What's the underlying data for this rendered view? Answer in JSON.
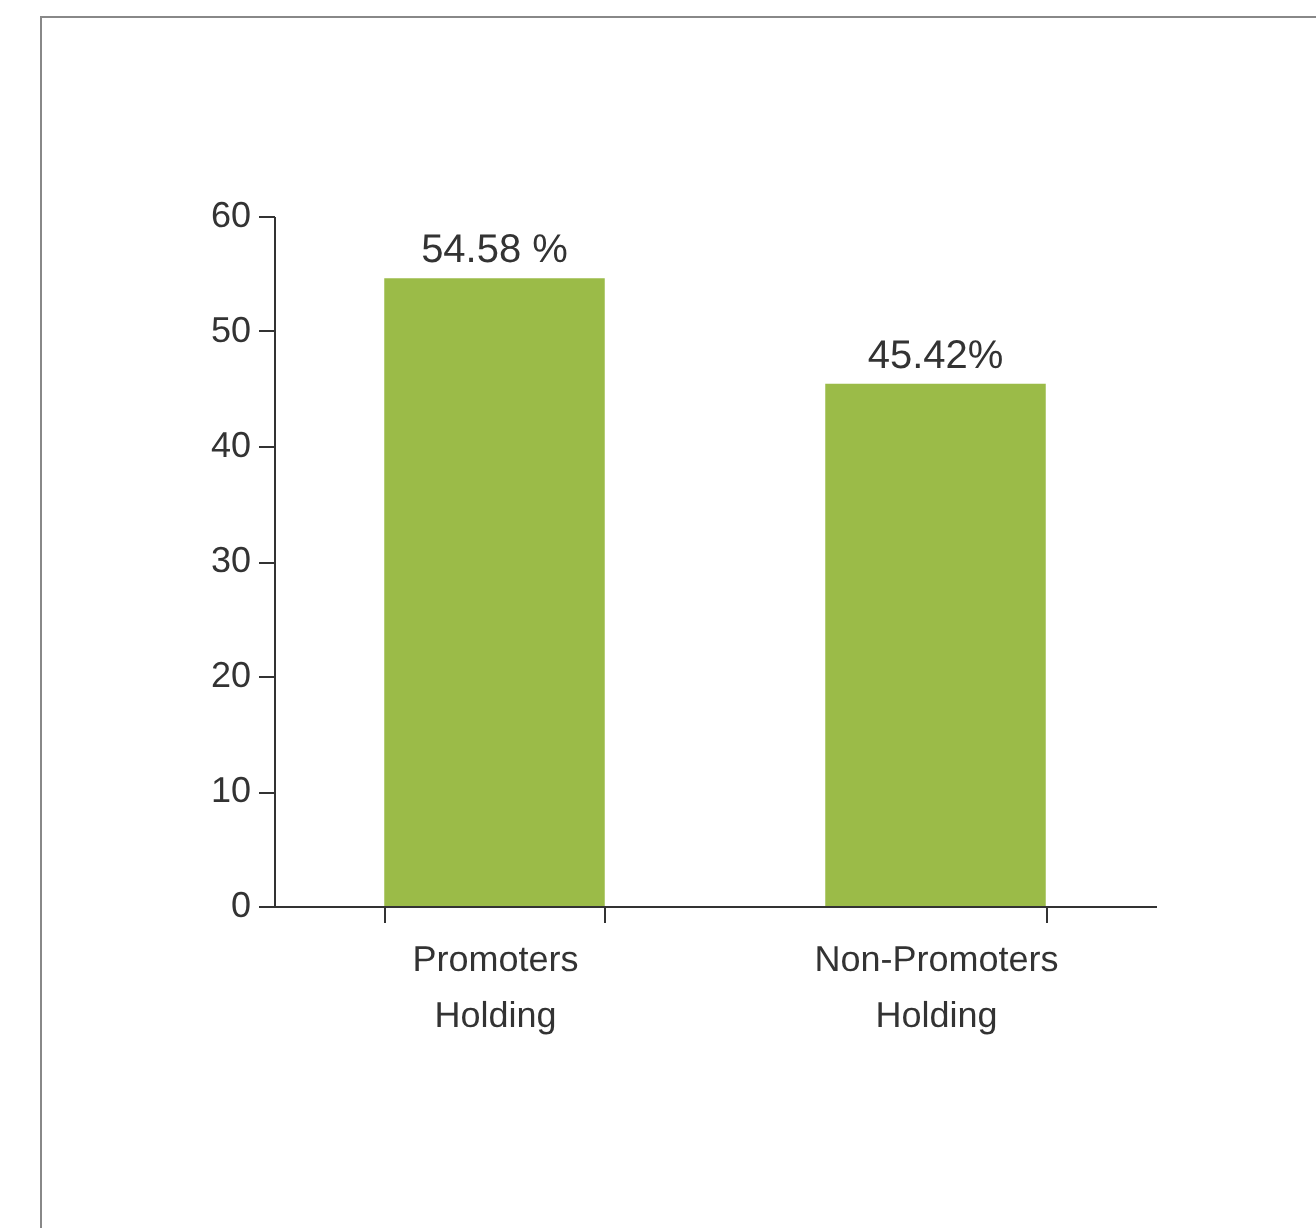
{
  "chart_data": {
    "type": "bar",
    "categories": [
      "Promoters Holding",
      "Non-Promoters Holding"
    ],
    "values": [
      54.58,
      45.42
    ],
    "value_labels": [
      "54.58 %",
      "45.42%"
    ],
    "color": "#9bbb48",
    "ylim": [
      0,
      60
    ],
    "yticks": [
      0,
      10,
      20,
      30,
      40,
      50,
      60
    ],
    "grid": false
  }
}
